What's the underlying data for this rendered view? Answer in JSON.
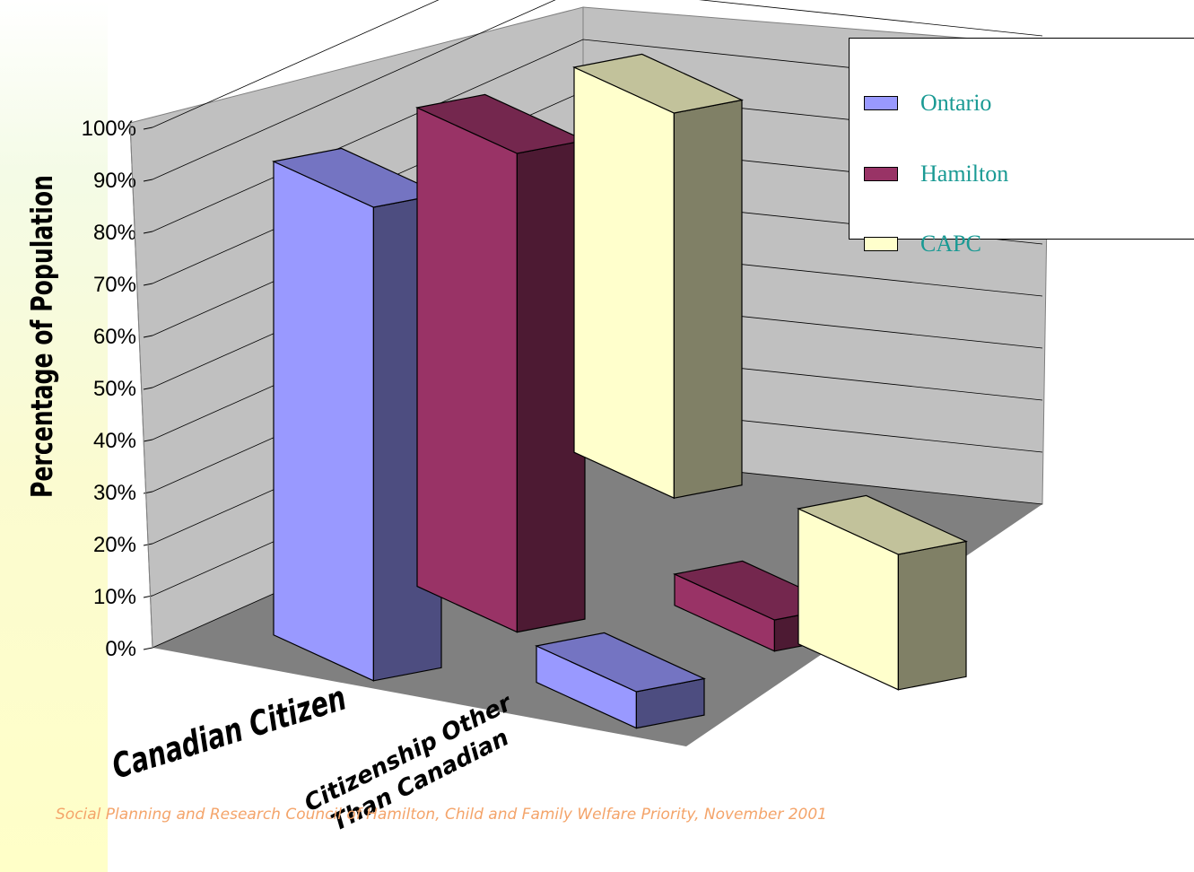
{
  "chart_data": {
    "type": "bar",
    "style": "3d-clustered-column",
    "categories": [
      "Canadian Citizen",
      "Citizenship Other Than Canadian"
    ],
    "series": [
      {
        "name": "Ontario",
        "values": [
          91,
          7
        ],
        "color": "#9999ff"
      },
      {
        "name": "Hamilton",
        "values": [
          92,
          6
        ],
        "color": "#993366"
      },
      {
        "name": "CAPC",
        "values": [
          74,
          26
        ],
        "color": "#ffffcc"
      }
    ],
    "ylabel": "Percentage of Population",
    "yticks": [
      "0%",
      "10%",
      "20%",
      "30%",
      "40%",
      "50%",
      "60%",
      "70%",
      "80%",
      "90%",
      "100%"
    ],
    "ylim": [
      0,
      100
    ],
    "grid": true,
    "legend_position": "top-right"
  },
  "source_note": "Social Planning and Research Council of Hamilton, Child and Family Welfare Priority, November 2001",
  "colors": {
    "floor": "#808080",
    "walls": "#c0c0c0",
    "legend_text": "#1a9a94",
    "source_text": "#f4a46a"
  }
}
